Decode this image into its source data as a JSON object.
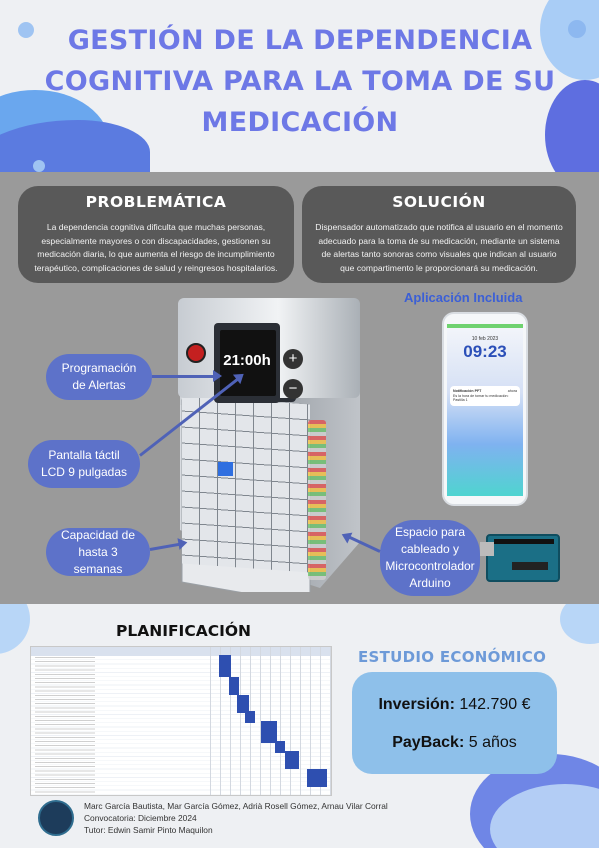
{
  "title_lines": [
    "GESTIÓN DE LA DEPENDENCIA",
    "COGNITIVA PARA LA TOMA DE SU",
    "MEDICACIÓN"
  ],
  "problem": {
    "heading": "PROBLEMÁTICA",
    "text": "La dependencia cognitiva dificulta que muchas personas, especialmente mayores o con discapacidades, gestionen su medicación diaria, lo que aumenta el riesgo de incumplimiento terapéutico, complicaciones de salud y reingresos hospitalarios."
  },
  "solution": {
    "heading": "SOLUCIÓN",
    "text": "Dispensador automatizado que notifica al usuario en el momento adecuado para la toma de su medicación, mediante un sistema de alertas tanto sonoras como visuales que indican al usuario que compartimento le proporcionará su medicación."
  },
  "device": {
    "display_time": "21:00h",
    "plus": "+",
    "minus": "−"
  },
  "callouts": {
    "alerts": "Programación de Alertas",
    "screen": "Pantalla táctil LCD 9 pulgadas",
    "capacity": "Capacidad de hasta 3 semanas",
    "wiring": "Espacio para cableado y Microcontrolador Arduino"
  },
  "app": {
    "label": "Aplicación Incluida",
    "date": "10 feb 2023",
    "time": "09:23",
    "notif_title": "Notificación PFT",
    "notif_time": "ahora",
    "notif_text": "Es la hora de tomar tu medicación: Pastilla 1"
  },
  "planning": {
    "heading": "PLANIFICACIÓN"
  },
  "economics": {
    "heading": "ESTUDIO ECONÓMICO",
    "investment_label": "Inversión:",
    "investment_value": "142.790 €",
    "payback_label": "PayBack:",
    "payback_value": "5 años"
  },
  "footer": {
    "authors": "Marc García Bautista, Mar García Gómez, Adrià Rosell Gómez, Arnau Vilar Corral",
    "call": "Convocatoria:  Diciembre 2024",
    "tutor": "Tutor:   Edwin Samir Pinto Maquilon"
  },
  "colors": {
    "title": "#6d78e6",
    "accent": "#5d72c9",
    "card": "#595959",
    "econ_box": "#8ec0ea"
  }
}
